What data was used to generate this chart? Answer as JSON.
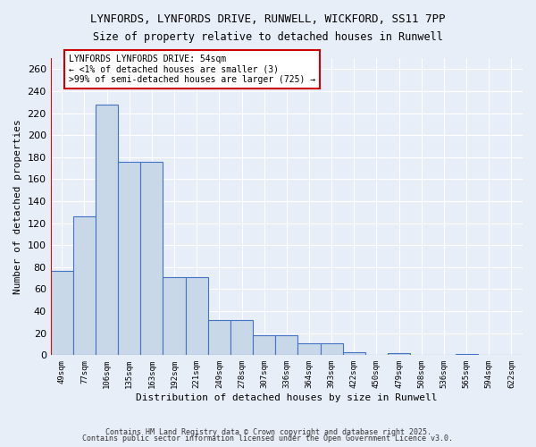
{
  "title1": "LYNFORDS, LYNFORDS DRIVE, RUNWELL, WICKFORD, SS11 7PP",
  "title2": "Size of property relative to detached houses in Runwell",
  "xlabel": "Distribution of detached houses by size in Runwell",
  "ylabel": "Number of detached properties",
  "bar_values": [
    77,
    126,
    228,
    176,
    176,
    71,
    71,
    32,
    32,
    18,
    18,
    11,
    11,
    3,
    0,
    2,
    0,
    0,
    1,
    0,
    0
  ],
  "bar_labels": [
    "49sqm",
    "77sqm",
    "106sqm",
    "135sqm",
    "163sqm",
    "192sqm",
    "221sqm",
    "249sqm",
    "278sqm",
    "307sqm",
    "336sqm",
    "364sqm",
    "393sqm",
    "422sqm",
    "450sqm",
    "479sqm",
    "508sqm",
    "536sqm",
    "565sqm",
    "594sqm",
    "622sqm"
  ],
  "bar_color": "#c8d8e8",
  "bar_edge_color": "#4472c4",
  "background_color": "#e8eef8",
  "grid_color": "#ffffff",
  "ylim": [
    0,
    270
  ],
  "yticks": [
    0,
    20,
    40,
    60,
    80,
    100,
    120,
    140,
    160,
    180,
    200,
    220,
    240,
    260
  ],
  "red_line_x": -0.5,
  "annotation_text": "LYNFORDS LYNFORDS DRIVE: 54sqm\n← <1% of detached houses are smaller (3)\n>99% of semi-detached houses are larger (725) →",
  "annotation_box_color": "#ffffff",
  "annotation_border_color": "#cc0000",
  "footer1": "Contains HM Land Registry data © Crown copyright and database right 2025.",
  "footer2": "Contains public sector information licensed under the Open Government Licence v3.0."
}
